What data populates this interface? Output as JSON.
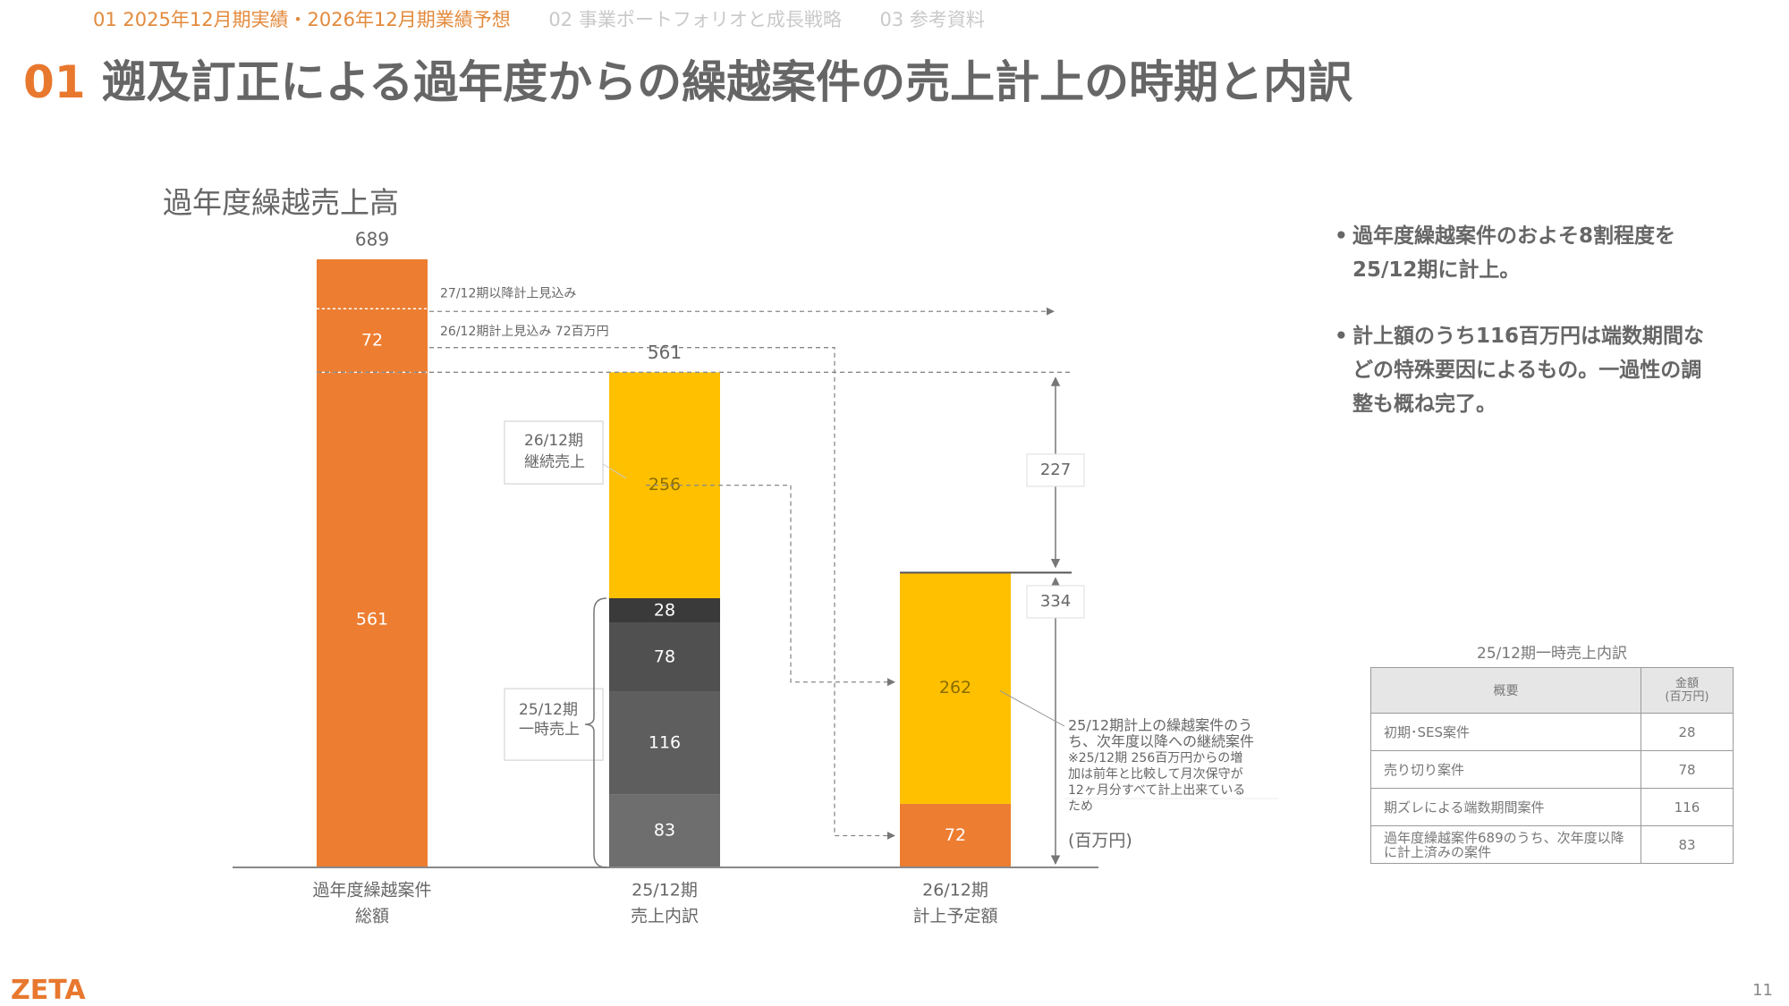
{
  "nav": {
    "items": [
      "01 2025年12月期実績・2026年12月期業績予想",
      "02 事業ポートフォリオと成長戦略",
      "03 参考資料"
    ],
    "active_index": 0
  },
  "title": {
    "number": "01",
    "text": "遡及訂正による過年度からの繰越案件の売上計上の時期と内訳"
  },
  "subtitle": "過年度繰越売上高",
  "colors": {
    "orange": "#ED7D31",
    "yellow": "#FFC000",
    "gray1": "#3a3a3a",
    "gray2": "#505050",
    "gray3": "#5e5e5e",
    "gray4": "#6e6e6e",
    "accent_text": "#E38A3C"
  },
  "chart_data": {
    "type": "bar",
    "stacked": true,
    "unit": "(百万円)",
    "ylim": [
      0,
      689
    ],
    "categories": [
      {
        "line1": "過年度繰越案件",
        "line2": "総額"
      },
      {
        "line1": "25/12期",
        "line2": "売上内訳"
      },
      {
        "line1": "26/12期",
        "line2": "計上予定額"
      }
    ],
    "totals": [
      "689",
      "561",
      null
    ],
    "stacks": [
      [
        {
          "value": 561,
          "label": "561",
          "color": "#ED7D31"
        },
        {
          "value": 72,
          "label": "72",
          "color": "#ED7D31"
        },
        {
          "value": 56,
          "label": "",
          "color": "#ED7D31"
        }
      ],
      [
        {
          "value": 83,
          "label": "83",
          "color": "#6e6e6e"
        },
        {
          "value": 116,
          "label": "116",
          "color": "#5e5e5e"
        },
        {
          "value": 78,
          "label": "78",
          "color": "#505050"
        },
        {
          "value": 28,
          "label": "28",
          "color": "#3a3a3a"
        },
        {
          "value": 256,
          "label": "256",
          "color": "#FFC000"
        }
      ],
      [
        {
          "value": 72,
          "label": "72",
          "color": "#ED7D31"
        },
        {
          "value": 262,
          "label": "262",
          "color": "#FFC000"
        }
      ]
    ],
    "annotations": {
      "future_label": "27/12期以降計上見込み",
      "fy26_label": "26/12期計上見込み 72百万円",
      "continuing_label": [
        "26/12期",
        "継続売上"
      ],
      "onetime_label": [
        "25/12期",
        "一時売上"
      ],
      "diff_upper": "227",
      "diff_lower": "334",
      "note": [
        "25/12期計上の繰越案件のう",
        "ち、次年度以降への継続案件",
        "※25/12期 256百万円からの増",
        "加は前年と比較して月次保守が",
        "12ヶ月分すべて計上出来ている",
        "ため"
      ]
    }
  },
  "bullets": [
    "過年度繰越案件のおよそ8割程度を25/12期に計上。",
    "計上額のうち116百万円は端数期間などの特殊要因によるもの。一過性の調整も概ね完了。"
  ],
  "table": {
    "caption": "25/12期一時売上内訳",
    "col_desc": "概要",
    "col_amount": [
      "金額",
      "(百万円)"
    ],
    "rows": [
      {
        "desc": "初期･SES案件",
        "amount": "28"
      },
      {
        "desc": "売り切り案件",
        "amount": "78"
      },
      {
        "desc": "期ズレによる端数期間案件",
        "amount": "116"
      },
      {
        "desc": "過年度繰越案件689のうち、次年度以降に計上済みの案件",
        "amount": "83"
      }
    ]
  },
  "logo": "ZETA",
  "page_number": "11"
}
